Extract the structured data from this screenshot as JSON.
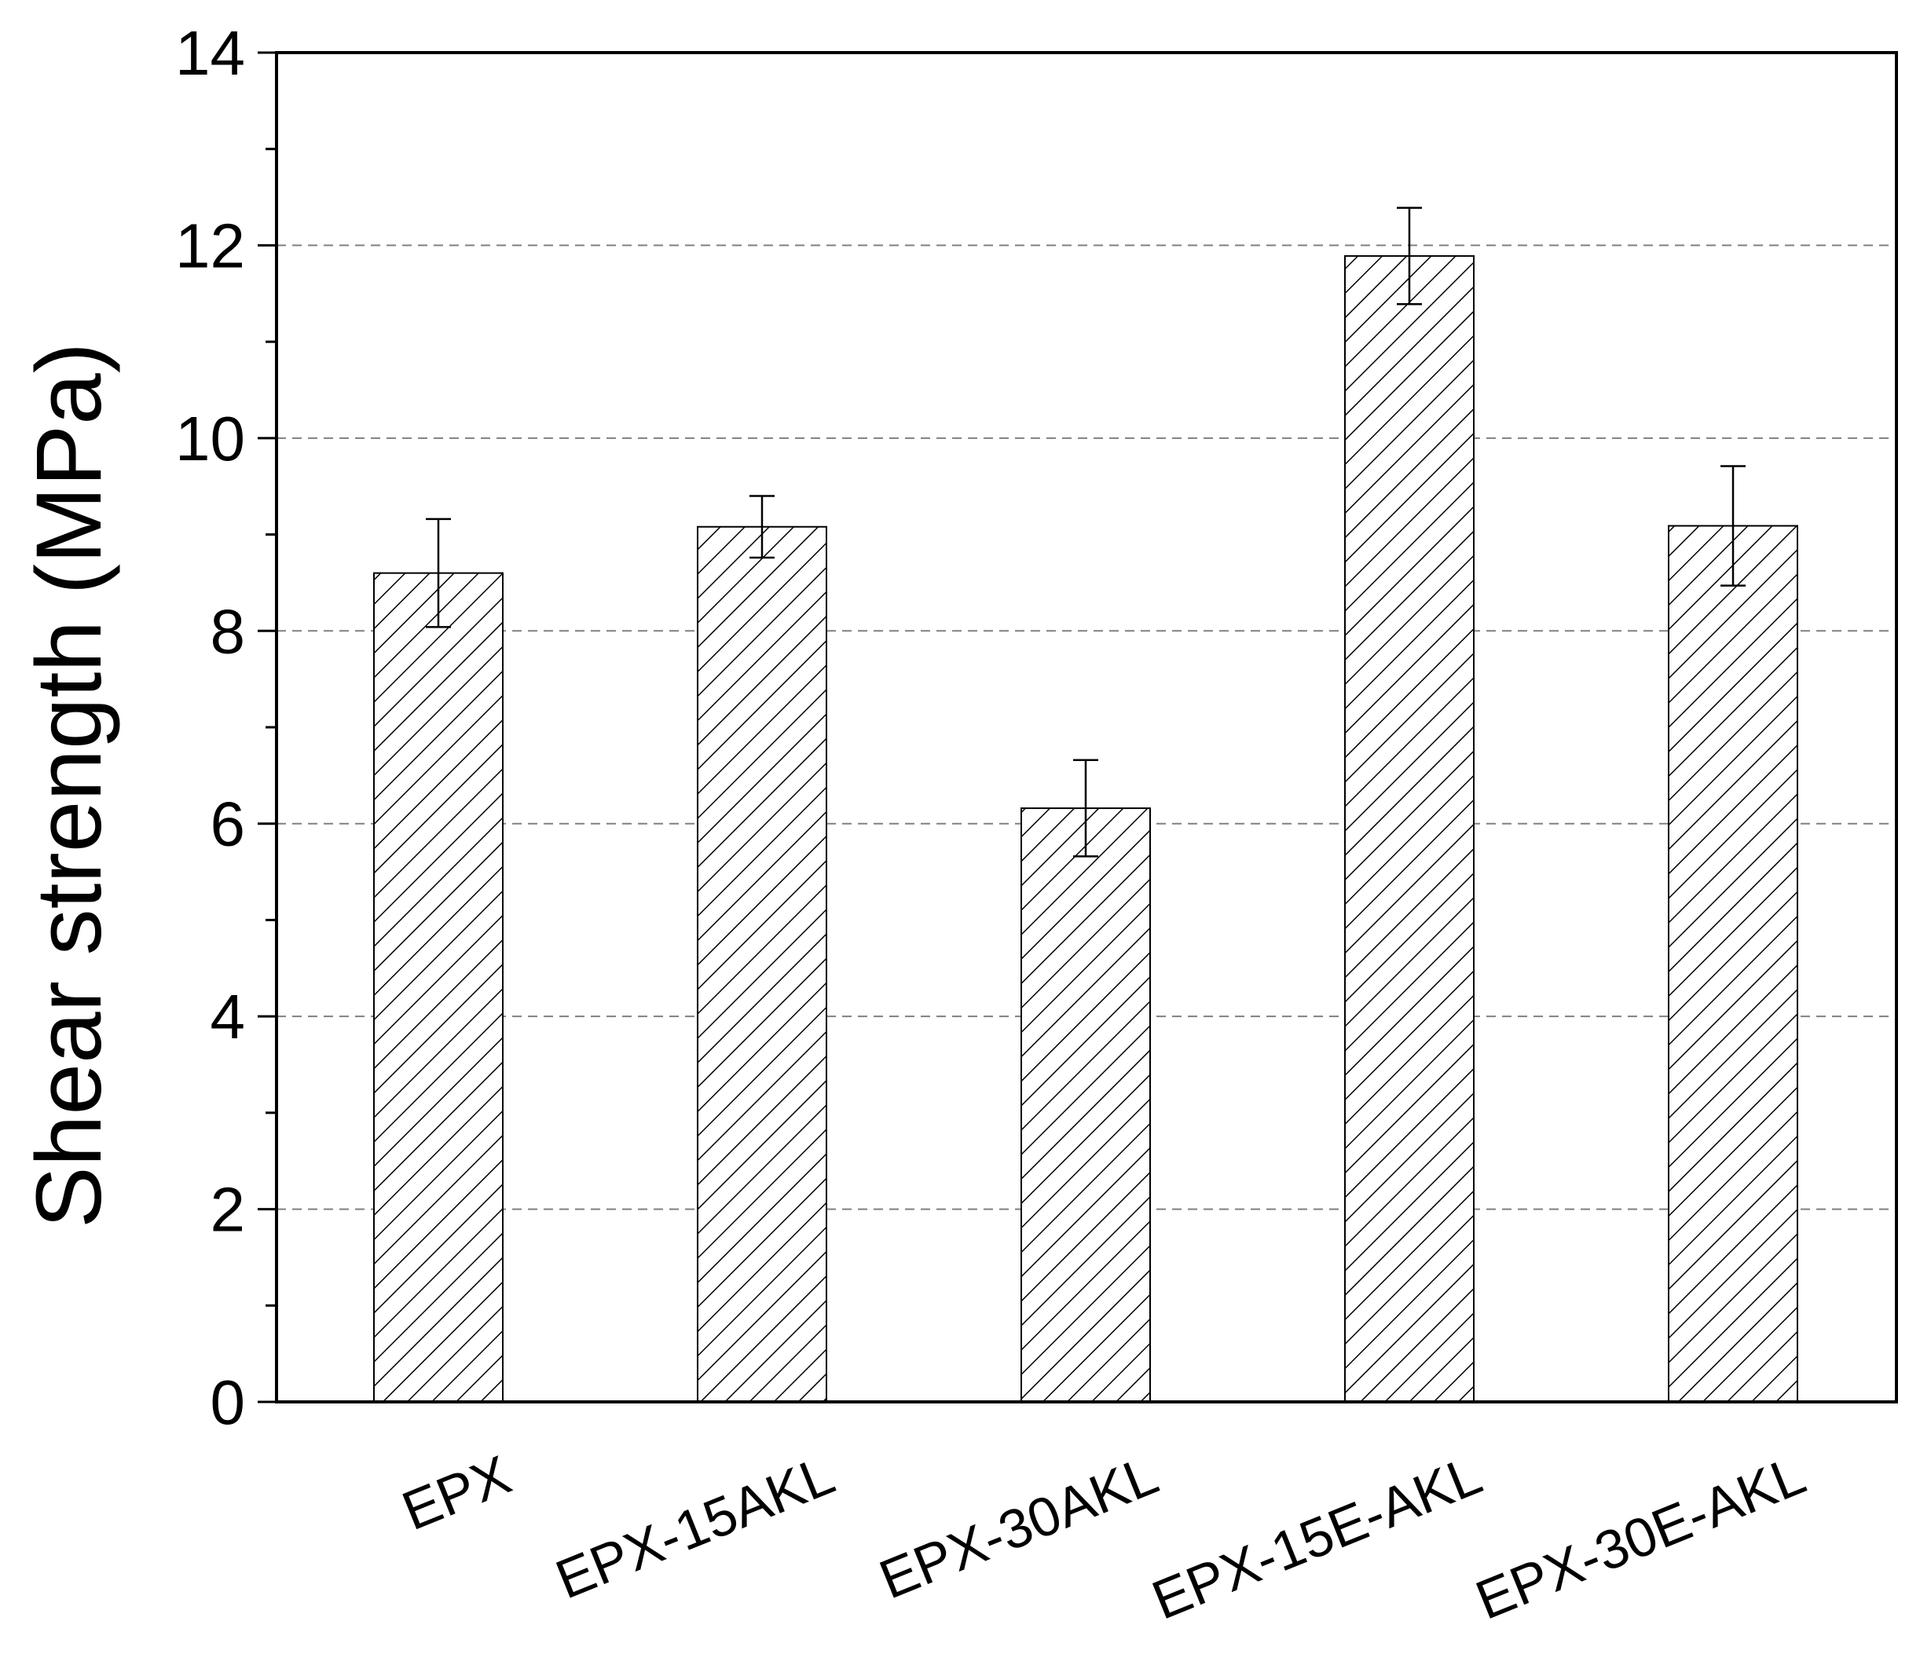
{
  "chart_data": {
    "type": "bar",
    "title": "",
    "xlabel": "",
    "ylabel": "Shear strength (MPa)",
    "categories": [
      "EPX",
      "EPX-15AKL",
      "EPX-30AKL",
      "EPX-15E-AKL",
      "EPX-30E-AKL"
    ],
    "values": [
      8.6,
      9.08,
      6.16,
      11.89,
      9.09
    ],
    "error": [
      0.56,
      0.32,
      0.5,
      0.5,
      0.62
    ],
    "ylim": [
      0,
      14
    ],
    "yticks": [
      0,
      2,
      4,
      6,
      8,
      10,
      12,
      14
    ],
    "ytick_labels": [
      "0",
      "2",
      "4",
      "6",
      "8",
      "10",
      "12",
      "14"
    ],
    "y_minor_step": 1,
    "grid": true,
    "grid_lines": [
      2,
      4,
      6,
      8,
      10,
      12
    ],
    "bar_fill": "hatched",
    "colors": {
      "bar_stroke": "#000000",
      "hatch": "#000000",
      "grid": "#808080",
      "axis": "#000000"
    }
  }
}
